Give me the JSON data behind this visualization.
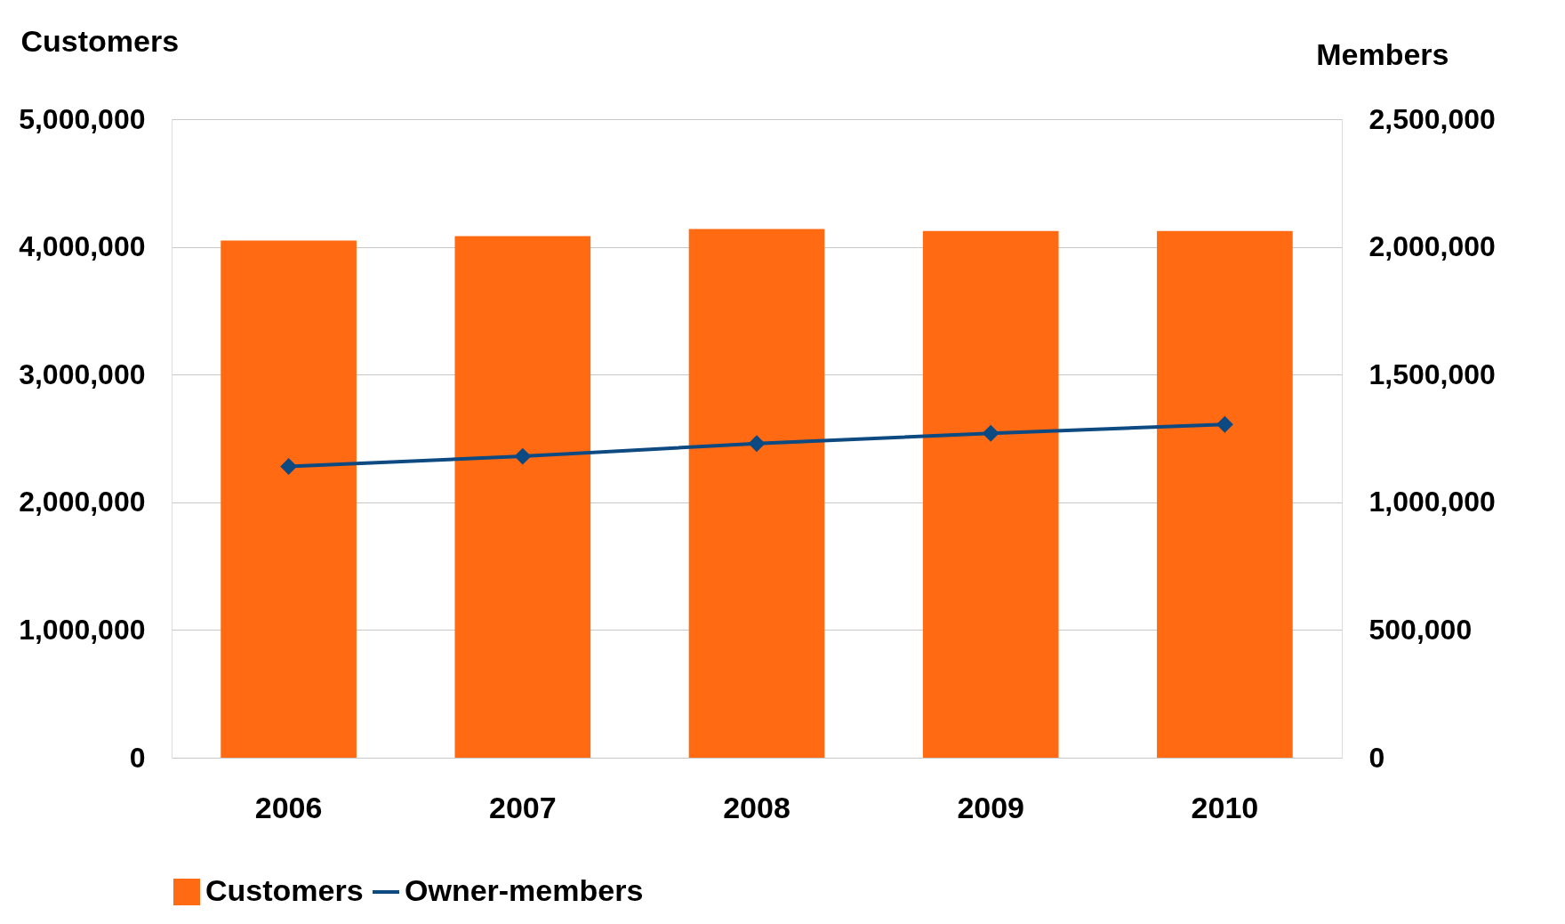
{
  "chart_data": {
    "type": "bar",
    "categories": [
      "2006",
      "2007",
      "2008",
      "2009",
      "2010"
    ],
    "ylabel": "Customers",
    "y2label": "Members",
    "series": [
      {
        "name": "Customers",
        "color": "#ff6a13",
        "values": [
          4050000,
          4085000,
          4140000,
          4125000,
          4125000
        ]
      },
      {
        "name": "Owner-members",
        "type": "line",
        "axis": "y2",
        "color": "#0d4a82",
        "values": [
          1140000,
          1180000,
          1230000,
          1270000,
          1305000
        ]
      }
    ],
    "ylim": [
      0,
      5000000
    ],
    "yticks": [
      {
        "value": 0,
        "label": "0"
      },
      {
        "value": 1000000,
        "label": "1,000,000"
      },
      {
        "value": 2000000,
        "label": "2,000,000"
      },
      {
        "value": 3000000,
        "label": "3,000,000"
      },
      {
        "value": 4000000,
        "label": "4,000,000"
      },
      {
        "value": 5000000,
        "label": "5,000,000"
      }
    ],
    "y2lim": [
      0,
      2500000
    ],
    "y2ticks": [
      {
        "value": 0,
        "label": "0"
      },
      {
        "value": 500000,
        "label": "500,000"
      },
      {
        "value": 1000000,
        "label": "1,000,000"
      },
      {
        "value": 1500000,
        "label": "1,500,000"
      },
      {
        "value": 2000000,
        "label": "2,000,000"
      },
      {
        "value": 2500000,
        "label": "2,500,000"
      }
    ],
    "grid": "y",
    "legend": "bottom",
    "marker": "diamond"
  }
}
